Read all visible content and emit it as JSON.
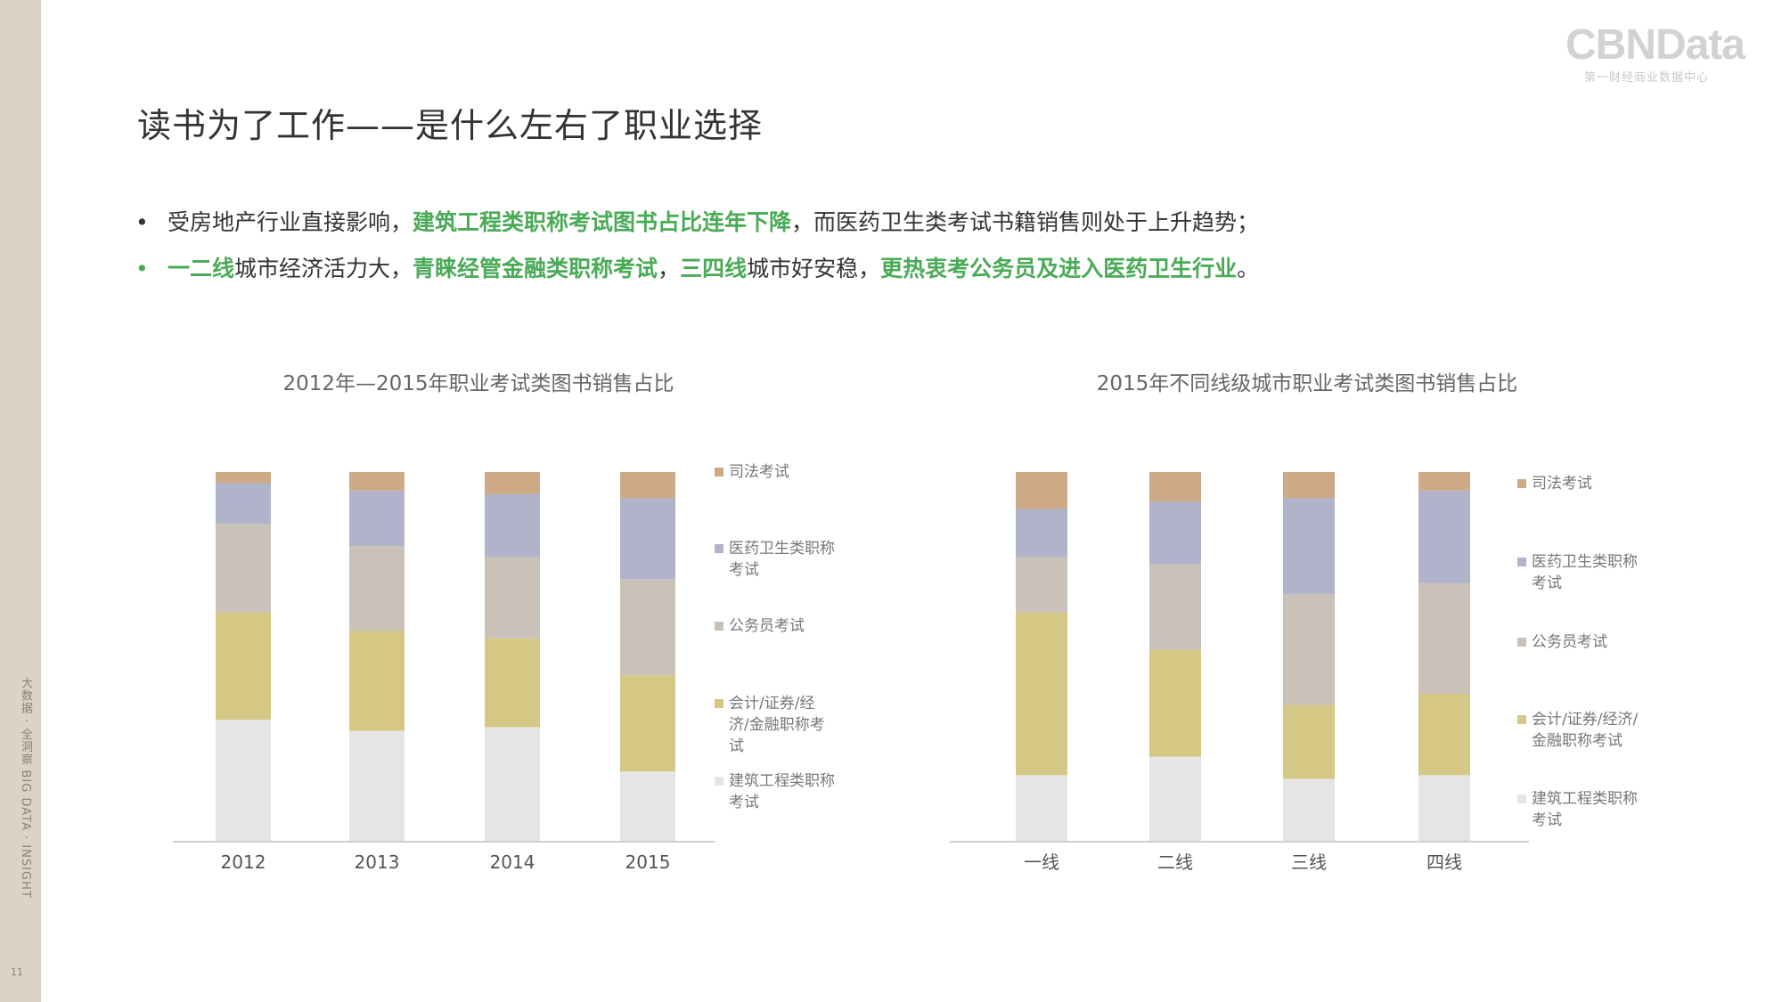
{
  "sidebar": {
    "text": "大数据 · 全洞察   BIG DATA · INSIGHT",
    "page_number": "11"
  },
  "logo": {
    "main": "CBNData",
    "sub": "第一财经商业数据中心"
  },
  "title": "读书为了工作——是什么左右了职业选择",
  "bullets": [
    {
      "segments": [
        {
          "text": "受房地产行业直接影响，",
          "highlight": false
        },
        {
          "text": "建筑工程类职称考试图书占比连年下降",
          "highlight": true
        },
        {
          "text": "，而医药卫生类考试书籍销售则处于上升趋势；",
          "highlight": false
        }
      ]
    },
    {
      "segments": [
        {
          "text": "一二线",
          "highlight": true
        },
        {
          "text": "城市经济活力大，",
          "highlight": false
        },
        {
          "text": "青睐经管金融类职称考试",
          "highlight": true
        },
        {
          "text": "，",
          "highlight": false
        },
        {
          "text": "三四线",
          "highlight": true
        },
        {
          "text": "城市好安稳，",
          "highlight": false
        },
        {
          "text": "更热衷考公务员及进入医药卫生行业",
          "highlight": true
        },
        {
          "text": "。",
          "highlight": false
        }
      ]
    }
  ],
  "colors": {
    "accent_green": "#4aab57",
    "series": [
      "#e5e5e5",
      "#d5c784",
      "#cac2b8",
      "#b1b3ca",
      "#cda987"
    ]
  },
  "chart_data": [
    {
      "type": "bar",
      "stacked": true,
      "title": "2012年—2015年职业考试类图书销售占比",
      "categories": [
        "2012",
        "2013",
        "2014",
        "2015"
      ],
      "ylim": [
        0,
        100
      ],
      "series": [
        {
          "name": "建筑工程类职称考试",
          "values": [
            33,
            30,
            31,
            19
          ]
        },
        {
          "name": "会计/证券/经济/金融职称考试",
          "values": [
            29,
            27,
            24,
            26
          ]
        },
        {
          "name": "公务员考试",
          "values": [
            24,
            23,
            22,
            26
          ]
        },
        {
          "name": "医药卫生类职称考试",
          "values": [
            11,
            15,
            17,
            22
          ]
        },
        {
          "name": "司法考试",
          "values": [
            3,
            5,
            6,
            7
          ]
        }
      ],
      "legend_position": "right",
      "legend_labels": [
        {
          "series": "司法考试",
          "lines": [
            "司法考试"
          ]
        },
        {
          "series": "医药卫生类职称考试",
          "lines": [
            "医药卫生类职称",
            "考试"
          ]
        },
        {
          "series": "公务员考试",
          "lines": [
            "公务员考试"
          ]
        },
        {
          "series": "会计/证券/经济/金融职称考试",
          "lines": [
            "会计/证券/经",
            "济/金融职称考",
            "试"
          ]
        },
        {
          "series": "建筑工程类职称考试",
          "lines": [
            "建筑工程类职称",
            "考试"
          ]
        }
      ]
    },
    {
      "type": "bar",
      "stacked": true,
      "title": "2015年不同线级城市职业考试类图书销售占比",
      "categories": [
        "一线",
        "二线",
        "三线",
        "四线"
      ],
      "ylim": [
        0,
        100
      ],
      "series": [
        {
          "name": "建筑工程类职称考试",
          "values": [
            18,
            23,
            17,
            18
          ]
        },
        {
          "name": "会计/证券/经济/金融职称考试",
          "values": [
            44,
            29,
            20,
            22
          ]
        },
        {
          "name": "公务员考试",
          "values": [
            15,
            23,
            30,
            30
          ]
        },
        {
          "name": "医药卫生类职称考试",
          "values": [
            13,
            17,
            26,
            25
          ]
        },
        {
          "name": "司法考试",
          "values": [
            10,
            8,
            7,
            5
          ]
        }
      ],
      "legend_position": "right",
      "legend_labels": [
        {
          "series": "司法考试",
          "lines": [
            "司法考试"
          ]
        },
        {
          "series": "医药卫生类职称考试",
          "lines": [
            "医药卫生类职称",
            "考试"
          ]
        },
        {
          "series": "公务员考试",
          "lines": [
            "公务员考试"
          ]
        },
        {
          "series": "会计/证券/经济/金融职称考试",
          "lines": [
            "会计/证券/经济/",
            "金融职称考试"
          ]
        },
        {
          "series": "建筑工程类职称考试",
          "lines": [
            "建筑工程类职称",
            "考试"
          ]
        }
      ]
    }
  ]
}
